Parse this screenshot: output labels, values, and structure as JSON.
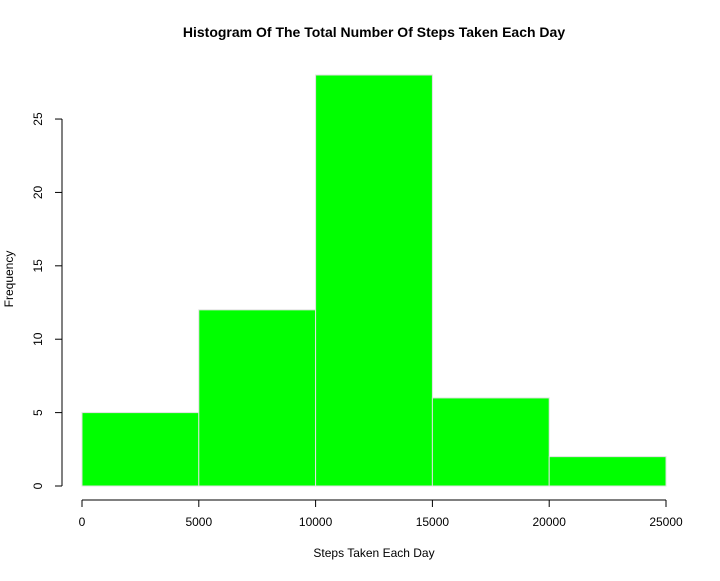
{
  "chart_data": {
    "type": "bar",
    "subtype": "histogram",
    "title": "Histogram Of The Total Number Of Steps Taken Each Day",
    "xlabel": "Steps Taken Each Day",
    "ylabel": "Frequency",
    "bins": [
      {
        "start": 0,
        "end": 5000,
        "value": 5
      },
      {
        "start": 5000,
        "end": 10000,
        "value": 12
      },
      {
        "start": 10000,
        "end": 15000,
        "value": 28
      },
      {
        "start": 15000,
        "end": 20000,
        "value": 6
      },
      {
        "start": 20000,
        "end": 25000,
        "value": 2
      }
    ],
    "xlim": [
      0,
      25000
    ],
    "ylim": [
      0,
      28
    ],
    "xticks": [
      0,
      5000,
      10000,
      15000,
      20000,
      25000
    ],
    "yticks": [
      0,
      5,
      10,
      15,
      20,
      25
    ],
    "bar_color": "#00ff00",
    "bar_border_color": "#e0e0e0",
    "grid": false,
    "legend": "none"
  }
}
